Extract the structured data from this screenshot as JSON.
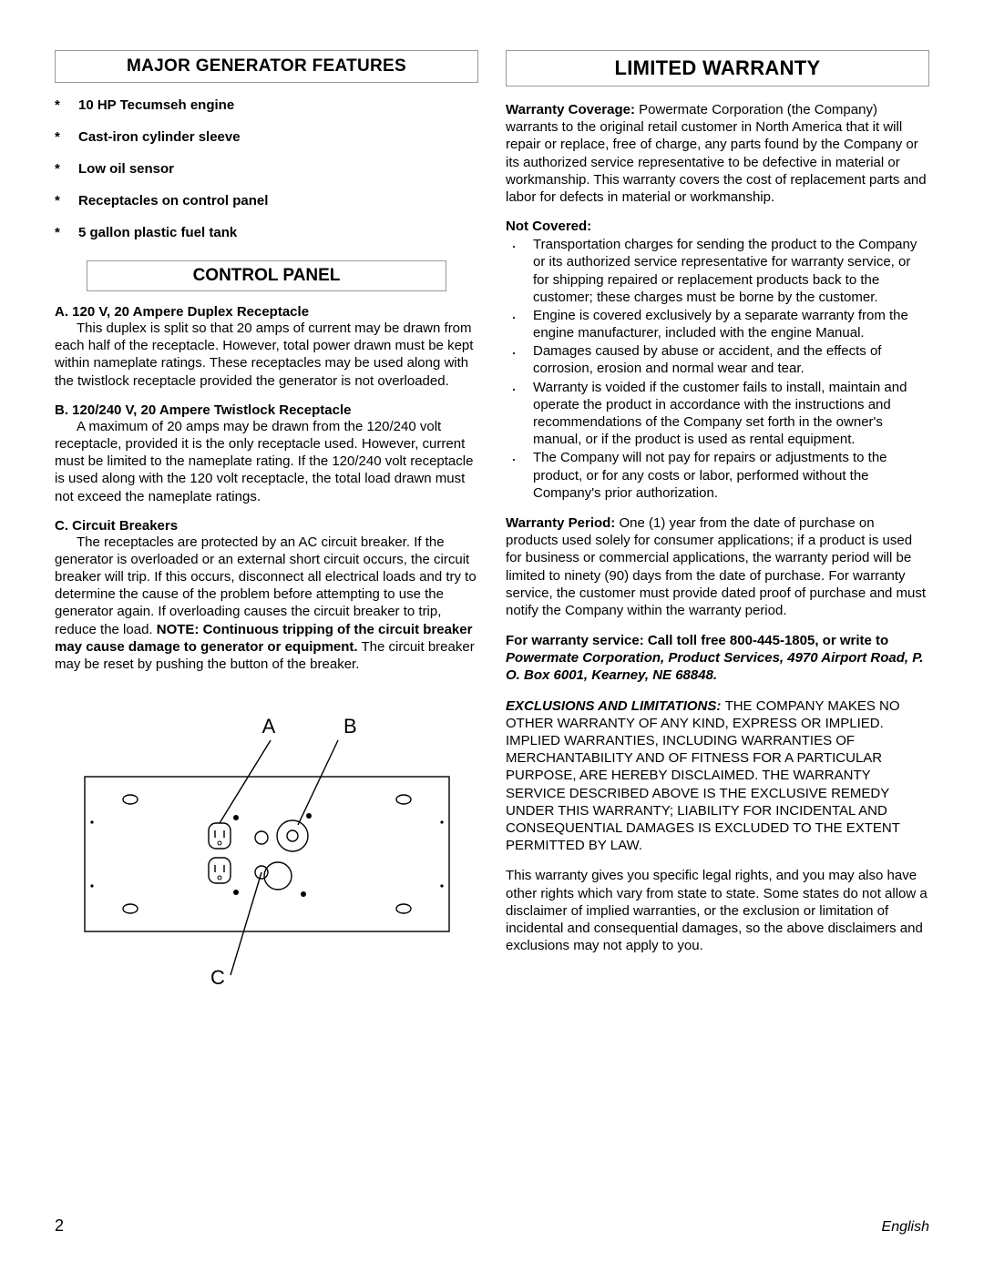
{
  "left": {
    "header1": "MAJOR GENERATOR FEATURES",
    "features": [
      "10 HP Tecumseh engine",
      "Cast-iron cylinder sleeve",
      "Low oil sensor",
      "Receptacles on control panel",
      "5 gallon plastic fuel tank"
    ],
    "header2": "CONTROL PANEL",
    "items": {
      "a_title": "A.   120 V, 20 Ampere Duplex Receptacle",
      "a_body": "This duplex is split so that 20 amps of current may be drawn from each half of the receptacle. However, total power drawn must be kept within nameplate ratings. These receptacles may be used along with the twistlock receptacle provided the generator is not overloaded.",
      "b_title": "B.   120/240 V, 20 Ampere Twistlock Receptacle",
      "b_body": "A maximum of 20 amps may be drawn from the 120/240 volt receptacle, provided it is the only receptacle used.  However, current must be limited to the nameplate rating.  If the 120/240 volt receptacle is used along with the 120 volt receptacle, the total load drawn must not exceed the nameplate ratings.",
      "c_title": "C.   Circuit Breakers",
      "c_body_pre": "The receptacles are protected by an AC circuit breaker.  If the generator is overloaded or an external short circuit occurs, the circuit breaker will trip.  If this occurs, disconnect all electrical loads and try to determine the cause of the problem before attempting to use the generator again. If overloading causes the circuit breaker to trip, reduce the load. ",
      "c_note_label": "NOTE: ",
      "c_note_bold": "Continuous tripping of the circuit breaker may cause damage to generator or equipment.",
      "c_body_post": "  The circuit breaker may be reset by pushing the button of the breaker."
    },
    "diagram": {
      "labels": {
        "a": "A",
        "b": "B",
        "c": "C"
      },
      "stroke": "#000000",
      "stroke_width": 1.4,
      "font_family": "Arial",
      "font_size": 22
    }
  },
  "right": {
    "header": "LIMITED WARRANTY",
    "coverage_label": "Warranty Coverage:  ",
    "coverage_body": "Powermate Corporation (the Company) warrants to the original retail customer in North America that it will repair or replace, free of charge, any parts found by the Company or its authorized service representative to be defective in material or workmanship.  This warranty covers the cost of replacement parts and labor for defects in material or workmanship.",
    "not_covered_label": "Not Covered:",
    "not_covered": [
      "Transportation charges for sending the product to the Company or its authorized service representative for warranty service, or for shipping repaired or replacement products back to the customer; these charges must be borne by the customer.",
      "Engine is covered exclusively by a separate warranty from the engine manufacturer, included with the engine Manual.",
      "Damages caused by abuse or accident, and the effects of corrosion, erosion and normal wear and tear.",
      "Warranty is voided if the customer fails to install, maintain and operate the product in accordance with the instructions and recommendations of the Company set forth in the owner's manual, or if the product is used as rental equipment.",
      "The Company will not pay for repairs or adjustments to the product, or for any costs or labor, performed without the Company's prior authorization."
    ],
    "period_label": "Warranty Period:  ",
    "period_body": "One (1) year from the date of purchase on products used solely for consumer applications;  if a product is used for business or commercial applications, the warranty period will be limited to ninety (90) days from the date of purchase.  For warranty service, the customer must provide dated proof of purchase and must notify the Company within the warranty period.",
    "service_pre": "For warranty service:  Call toll free 800-445-1805, or write to ",
    "service_addr": "Powermate Corporation, Product Services, 4970 Airport Road, P. O. Box 6001, Kearney, NE 68848.",
    "excl_label": "EXCLUSIONS AND LIMITATIONS: ",
    "excl_body": "THE COMPANY MAKES NO OTHER WARRANTY OF ANY KIND, EXPRESS OR IMPLIED.  IMPLIED WARRANTIES, INCLUDING WARRANTIES OF MERCHANTABILITY AND OF FITNESS FOR A PARTICULAR PURPOSE, ARE HEREBY DISCLAIMED.  THE WARRANTY SERVICE DESCRIBED ABOVE IS THE EXCLUSIVE REMEDY UNDER THIS WARRANTY; LIABILITY FOR INCIDENTAL AND CONSEQUENTIAL DAMAGES IS EXCLUDED TO THE EXTENT PERMITTED BY LAW.",
    "rights": "This warranty gives you specific legal rights, and you may also have other rights which vary from state to state.  Some states do not allow a disclaimer of implied warranties, or the exclusion or limitation of incidental and consequential damages, so the above disclaimers and exclusions may not apply to you."
  },
  "footer": {
    "page": "2",
    "lang": "English"
  }
}
